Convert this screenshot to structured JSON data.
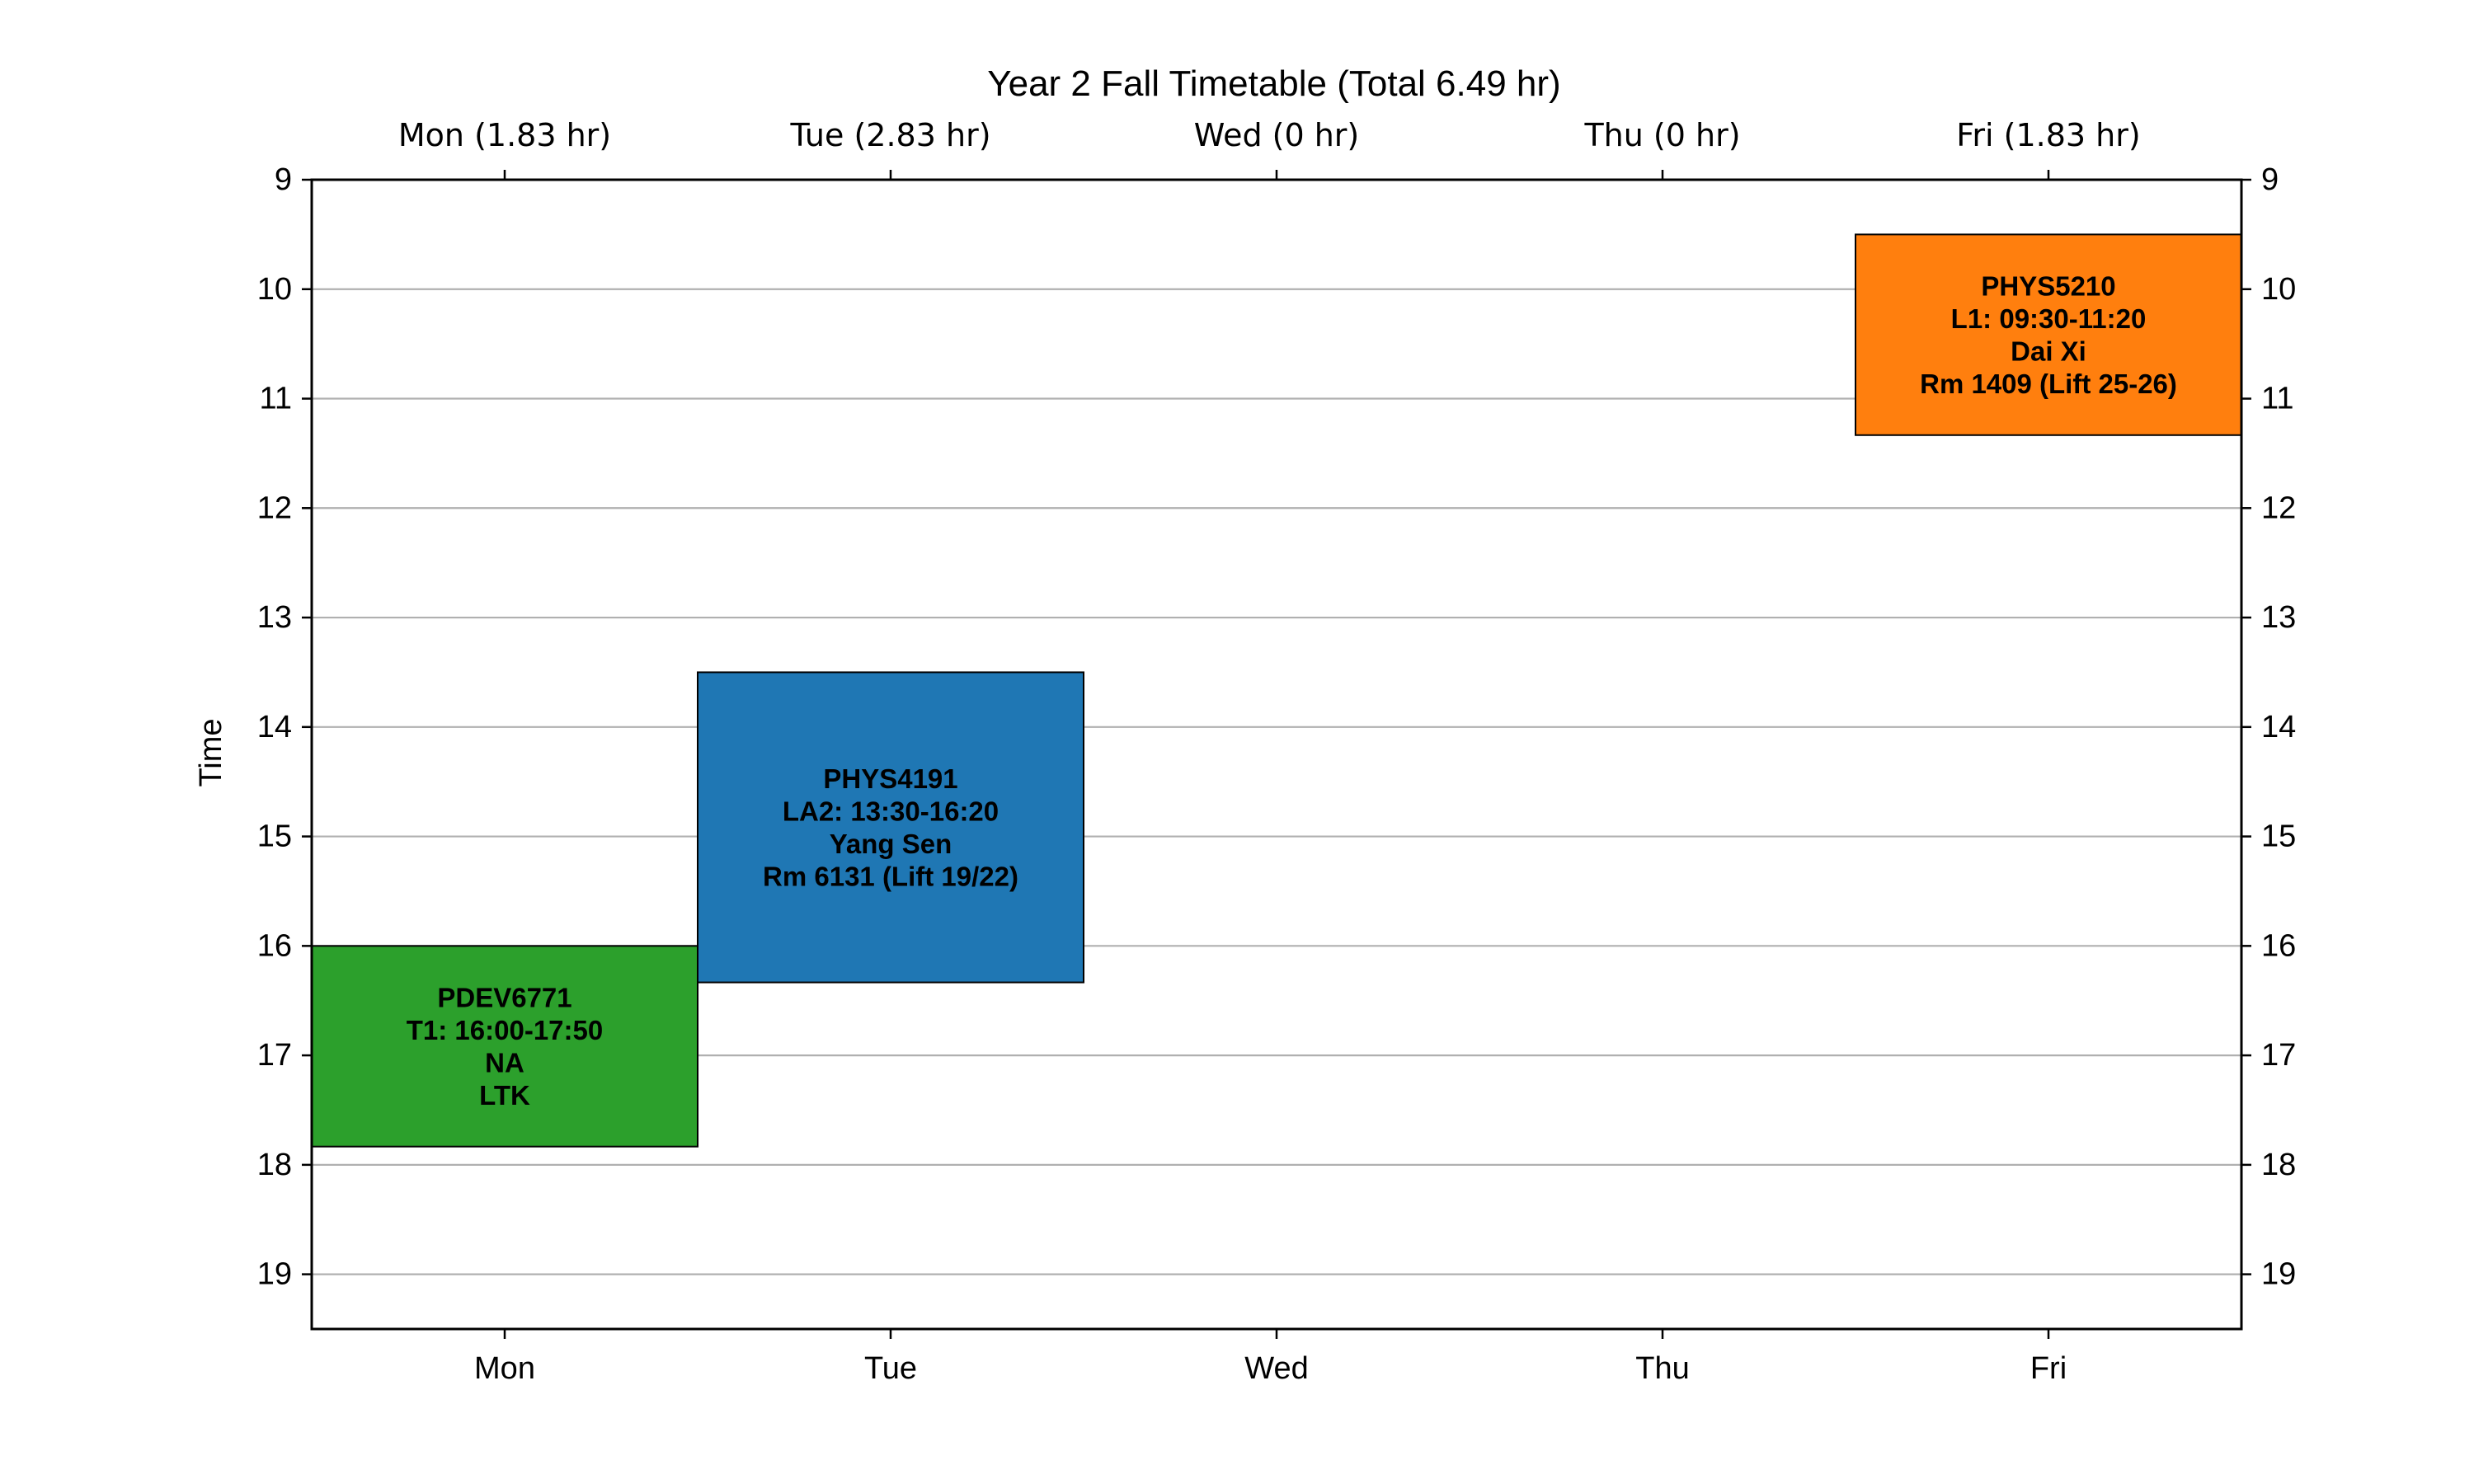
{
  "chart_data": {
    "type": "table",
    "title": "Year 2 Fall Timetable (Total 6.49 hr)",
    "ylabel": "Time",
    "ylim": [
      9,
      19.5
    ],
    "yticks": [
      9,
      10,
      11,
      12,
      13,
      14,
      15,
      16,
      17,
      18,
      19
    ],
    "y_inverted": true,
    "grid_y": true,
    "days": [
      "Mon",
      "Tue",
      "Wed",
      "Thu",
      "Fri"
    ],
    "day_totals": [
      "Mon (1.83 hr)",
      "Tue (2.83 hr)",
      "Wed (0 hr)",
      "Thu (0 hr)",
      "Fri (1.83 hr)"
    ],
    "events": [
      {
        "day": "Mon",
        "start": 16.0,
        "end": 17.8333,
        "color": "#2ca02c",
        "lines": [
          "PDEV6771",
          "T1: 16:00-17:50",
          "NA",
          "LTK"
        ]
      },
      {
        "day": "Tue",
        "start": 13.5,
        "end": 16.3333,
        "color": "#1f77b4",
        "lines": [
          "PHYS4191",
          "LA2: 13:30-16:20",
          "Yang Sen",
          "Rm 6131 (Lift 19/22)"
        ]
      },
      {
        "day": "Fri",
        "start": 9.5,
        "end": 11.3333,
        "color": "#ff7f0e",
        "lines": [
          "PHYS5210",
          "L1: 09:30-11:20",
          "Dai Xi",
          "Rm 1409 (Lift 25-26)"
        ]
      }
    ]
  }
}
